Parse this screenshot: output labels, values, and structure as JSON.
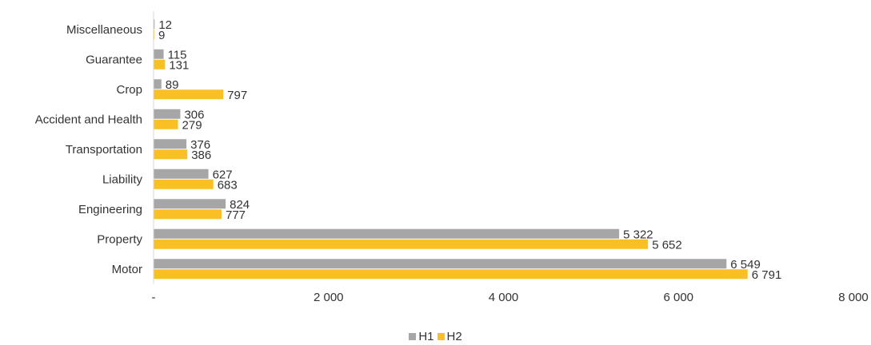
{
  "chart_data": {
    "type": "bar",
    "orientation": "horizontal",
    "categories": [
      "Miscellaneous",
      "Guarantee",
      "Crop",
      "Accident and Health",
      "Transportation",
      "Liability",
      "Engineering",
      "Property",
      "Motor"
    ],
    "series": [
      {
        "name": "H1",
        "color": "#a6a6a6",
        "values": [
          12,
          115,
          89,
          306,
          376,
          627,
          824,
          5322,
          6549
        ],
        "labels": [
          "12",
          "115",
          "89",
          "306",
          "376",
          "627",
          "824",
          "5 322",
          "6 549"
        ]
      },
      {
        "name": "H2",
        "color": "#fbbf26",
        "values": [
          9,
          131,
          797,
          279,
          386,
          683,
          777,
          5652,
          6791
        ],
        "labels": [
          "9",
          "131",
          "797",
          "279",
          "386",
          "683",
          "777",
          "5 652",
          "6 791"
        ]
      }
    ],
    "x_ticks": [
      0,
      2000,
      4000,
      6000,
      8000
    ],
    "x_tick_labels": [
      "-",
      "2 000",
      "4 000",
      "6 000",
      "8 000"
    ],
    "xlim": [
      0,
      8000
    ],
    "grid": false,
    "legend_position": "bottom"
  }
}
